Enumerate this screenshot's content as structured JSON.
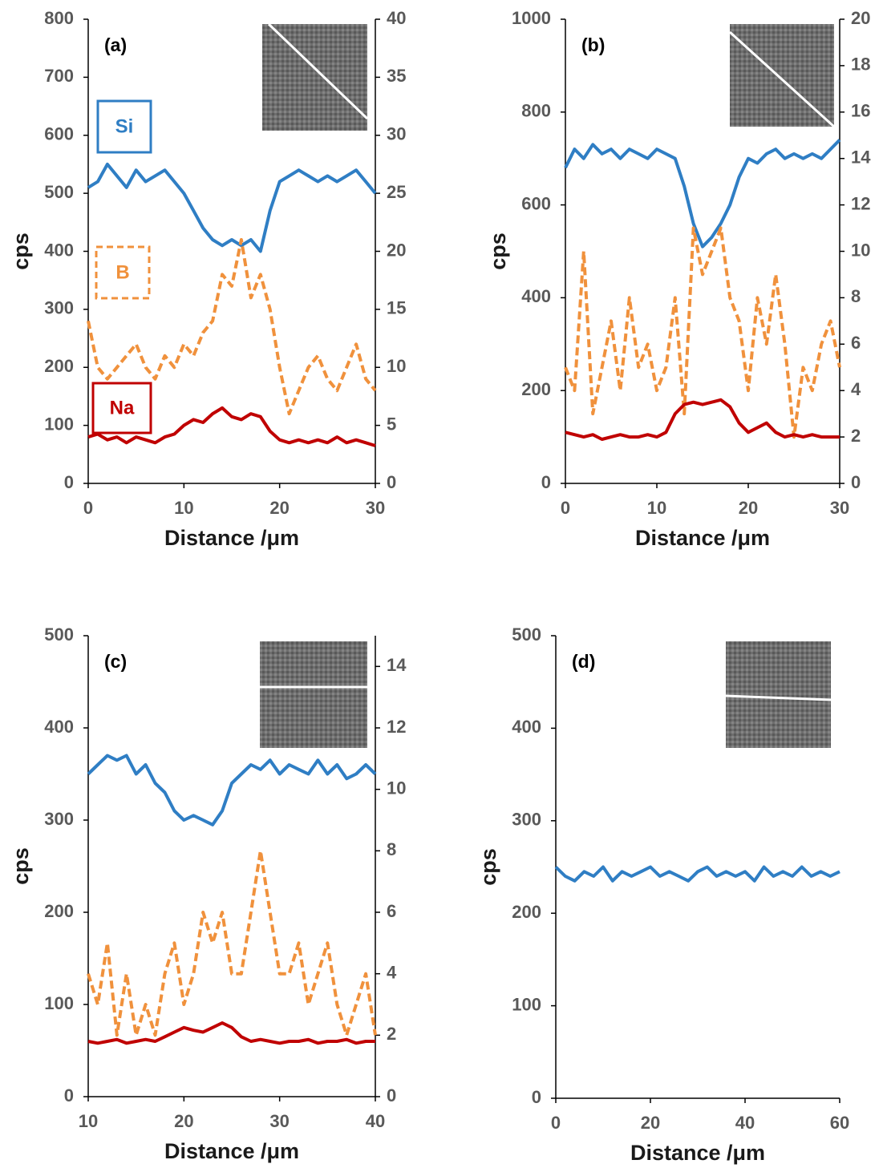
{
  "chart_data": [
    {
      "type": "line",
      "label": "(a)",
      "x_label": "Distance /μm",
      "y_label": "cps",
      "xlim": [
        0,
        30
      ],
      "xticks": [
        0,
        10,
        20,
        30
      ],
      "ylim": [
        0,
        800
      ],
      "yticks": [
        0,
        100,
        200,
        300,
        400,
        500,
        600,
        700,
        800
      ],
      "y2lim": [
        0,
        40
      ],
      "y2ticks": [
        0,
        5,
        10,
        15,
        20,
        25,
        30,
        35,
        40
      ],
      "x": [
        0,
        1,
        2,
        3,
        4,
        5,
        6,
        7,
        8,
        9,
        10,
        11,
        12,
        13,
        14,
        15,
        16,
        17,
        18,
        19,
        20,
        21,
        22,
        23,
        24,
        25,
        26,
        27,
        28,
        29,
        30
      ],
      "series": [
        {
          "name": "Si",
          "color": "#2f7ec4",
          "values": [
            510,
            520,
            550,
            530,
            510,
            540,
            520,
            530,
            540,
            520,
            500,
            470,
            440,
            420,
            410,
            420,
            410,
            420,
            400,
            470,
            520,
            530,
            540,
            530,
            520,
            530,
            520,
            530,
            540,
            520,
            500
          ]
        },
        {
          "name": "B",
          "color": "#f0913c",
          "axis": "y2",
          "dashed": true,
          "values": [
            14,
            10,
            9,
            10,
            11,
            12,
            10,
            9,
            11,
            10,
            12,
            11,
            13,
            14,
            18,
            17,
            21,
            16,
            18,
            15,
            10,
            6,
            8,
            10,
            11,
            9,
            8,
            10,
            12,
            9,
            8
          ]
        },
        {
          "name": "Na",
          "color": "#c00000",
          "values": [
            80,
            85,
            75,
            80,
            70,
            80,
            75,
            70,
            80,
            85,
            100,
            110,
            105,
            120,
            130,
            115,
            110,
            120,
            115,
            90,
            75,
            70,
            75,
            70,
            75,
            70,
            80,
            70,
            75,
            70,
            65
          ]
        }
      ]
    },
    {
      "type": "line",
      "label": "(b)",
      "x_label": "Distance /μm",
      "y_label": "cps",
      "xlim": [
        0,
        30
      ],
      "xticks": [
        0,
        10,
        20,
        30
      ],
      "ylim": [
        0,
        1000
      ],
      "yticks": [
        0,
        200,
        400,
        600,
        800,
        1000
      ],
      "y2lim": [
        0,
        20
      ],
      "y2ticks": [
        0,
        2,
        4,
        6,
        8,
        10,
        12,
        14,
        16,
        18,
        20
      ],
      "x": [
        0,
        1,
        2,
        3,
        4,
        5,
        6,
        7,
        8,
        9,
        10,
        11,
        12,
        13,
        14,
        15,
        16,
        17,
        18,
        19,
        20,
        21,
        22,
        23,
        24,
        25,
        26,
        27,
        28,
        29,
        30
      ],
      "series": [
        {
          "color": "#2f7ec4",
          "values": [
            680,
            720,
            700,
            730,
            710,
            720,
            700,
            720,
            710,
            700,
            720,
            710,
            700,
            640,
            560,
            510,
            530,
            560,
            600,
            660,
            700,
            690,
            710,
            720,
            700,
            710,
            700,
            710,
            700,
            720,
            740
          ]
        },
        {
          "color": "#f0913c",
          "axis": "y2",
          "dashed": true,
          "values": [
            5,
            4,
            10,
            3,
            5,
            7,
            4,
            8,
            5,
            6,
            4,
            5,
            8,
            3,
            11,
            9,
            10,
            11,
            8,
            7,
            4,
            8,
            6,
            9,
            6,
            2,
            5,
            4,
            6,
            7,
            5
          ]
        },
        {
          "color": "#c00000",
          "values": [
            110,
            105,
            100,
            105,
            95,
            100,
            105,
            100,
            100,
            105,
            100,
            110,
            150,
            170,
            175,
            170,
            175,
            180,
            165,
            130,
            110,
            120,
            130,
            110,
            100,
            105,
            100,
            105,
            100,
            100,
            100
          ]
        }
      ]
    },
    {
      "type": "line",
      "label": "(c)",
      "x_label": "Distance /μm",
      "y_label": "cps",
      "xlim": [
        10,
        40
      ],
      "xticks": [
        10,
        20,
        30,
        40
      ],
      "ylim": [
        0,
        500
      ],
      "yticks": [
        0,
        100,
        200,
        300,
        400,
        500
      ],
      "y2lim": [
        0,
        15
      ],
      "y2ticks": [
        0,
        2,
        4,
        6,
        8,
        10,
        12,
        14
      ],
      "x": [
        10,
        11,
        12,
        13,
        14,
        15,
        16,
        17,
        18,
        19,
        20,
        21,
        22,
        23,
        24,
        25,
        26,
        27,
        28,
        29,
        30,
        31,
        32,
        33,
        34,
        35,
        36,
        37,
        38,
        39,
        40
      ],
      "series": [
        {
          "color": "#2f7ec4",
          "values": [
            350,
            360,
            370,
            365,
            370,
            350,
            360,
            340,
            330,
            310,
            300,
            305,
            300,
            295,
            310,
            340,
            350,
            360,
            355,
            365,
            350,
            360,
            355,
            350,
            365,
            350,
            360,
            345,
            350,
            360,
            350
          ]
        },
        {
          "color": "#f0913c",
          "axis": "y2",
          "dashed": true,
          "values": [
            4,
            3,
            5,
            2,
            4,
            2,
            3,
            2,
            4,
            5,
            3,
            4,
            6,
            5,
            6,
            4,
            4,
            6,
            8,
            6,
            4,
            4,
            5,
            3,
            4,
            5,
            3,
            2,
            3,
            4,
            2
          ]
        },
        {
          "color": "#c00000",
          "values": [
            60,
            58,
            60,
            62,
            58,
            60,
            62,
            60,
            65,
            70,
            75,
            72,
            70,
            75,
            80,
            75,
            65,
            60,
            62,
            60,
            58,
            60,
            60,
            62,
            58,
            60,
            60,
            62,
            58,
            60,
            60
          ]
        }
      ]
    },
    {
      "type": "line",
      "label": "(d)",
      "x_label": "Distance /μm",
      "y_label": "cps",
      "xlim": [
        0,
        60
      ],
      "xticks": [
        0,
        20,
        40,
        60
      ],
      "ylim": [
        0,
        500
      ],
      "yticks": [
        0,
        100,
        200,
        300,
        400,
        500
      ],
      "x": [
        0,
        2,
        4,
        6,
        8,
        10,
        12,
        14,
        16,
        18,
        20,
        22,
        24,
        26,
        28,
        30,
        32,
        34,
        36,
        38,
        40,
        42,
        44,
        46,
        48,
        50,
        52,
        54,
        56,
        58,
        60
      ],
      "series": [
        {
          "color": "#2f7ec4",
          "values": [
            250,
            240,
            235,
            245,
            240,
            250,
            235,
            245,
            240,
            245,
            250,
            240,
            245,
            240,
            235,
            245,
            250,
            240,
            245,
            240,
            245,
            235,
            250,
            240,
            245,
            240,
            250,
            240,
            245,
            240,
            245
          ]
        }
      ]
    }
  ]
}
